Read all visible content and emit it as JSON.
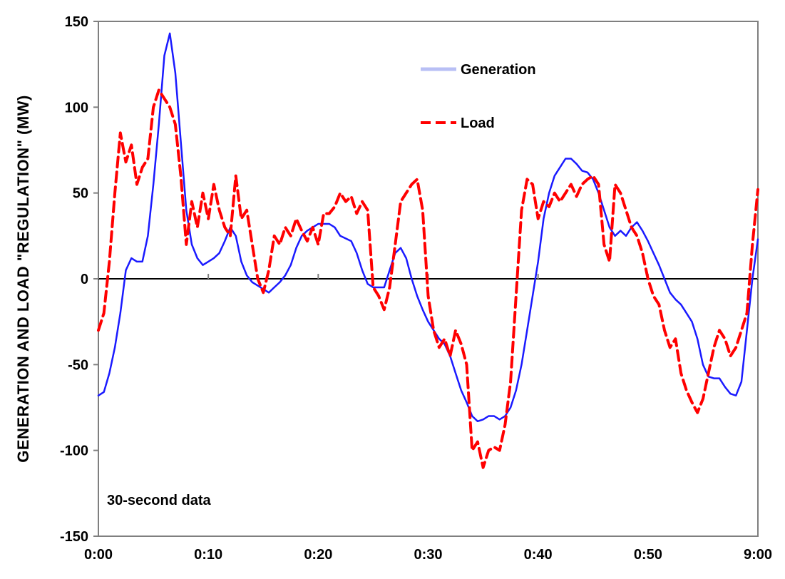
{
  "chart_data": {
    "type": "line",
    "title": "",
    "xlabel": "",
    "ylabel": "GENERATION AND LOAD \"REGULATION\" (MW)",
    "ylim": [
      -150,
      150
    ],
    "xlim": [
      0,
      60
    ],
    "x_ticks": [
      0,
      10,
      20,
      30,
      40,
      50,
      60
    ],
    "x_tick_labels": [
      "0:00",
      "0:10",
      "0:20",
      "0:30",
      "0:40",
      "0:50",
      "9:00"
    ],
    "y_ticks": [
      -150,
      -100,
      -50,
      0,
      50,
      100,
      150
    ],
    "y_tick_labels": [
      "-150",
      "-100",
      "-50",
      "0",
      "50",
      "100",
      "150"
    ],
    "grid": false,
    "zero_line": true,
    "legend_placement": "top-center",
    "annotation": "30-second data",
    "series": [
      {
        "name": "Generation",
        "color": "#1a1aff",
        "dash": "solid",
        "points": [
          [
            0,
            -68
          ],
          [
            0.5,
            -66
          ],
          [
            1,
            -55
          ],
          [
            1.5,
            -40
          ],
          [
            2,
            -20
          ],
          [
            2.5,
            5
          ],
          [
            3,
            12
          ],
          [
            3.5,
            10
          ],
          [
            4,
            10
          ],
          [
            4.5,
            25
          ],
          [
            5,
            55
          ],
          [
            5.5,
            90
          ],
          [
            6,
            130
          ],
          [
            6.5,
            143
          ],
          [
            7,
            120
          ],
          [
            7.5,
            80
          ],
          [
            8,
            40
          ],
          [
            8.5,
            20
          ],
          [
            9,
            12
          ],
          [
            9.5,
            8
          ],
          [
            10,
            10
          ],
          [
            10.5,
            12
          ],
          [
            11,
            15
          ],
          [
            11.5,
            22
          ],
          [
            12,
            30
          ],
          [
            12.5,
            25
          ],
          [
            13,
            10
          ],
          [
            13.5,
            2
          ],
          [
            14,
            -2
          ],
          [
            14.5,
            -4
          ],
          [
            15,
            -6
          ],
          [
            15.5,
            -8
          ],
          [
            16,
            -5
          ],
          [
            16.5,
            -2
          ],
          [
            17,
            2
          ],
          [
            17.5,
            8
          ],
          [
            18,
            18
          ],
          [
            18.5,
            25
          ],
          [
            19,
            28
          ],
          [
            19.5,
            30
          ],
          [
            20,
            32
          ],
          [
            21,
            32
          ],
          [
            21.5,
            30
          ],
          [
            22,
            25
          ],
          [
            23,
            22
          ],
          [
            23.5,
            15
          ],
          [
            24,
            5
          ],
          [
            24.5,
            -3
          ],
          [
            25,
            -5
          ],
          [
            26,
            -5
          ],
          [
            26.5,
            5
          ],
          [
            27,
            15
          ],
          [
            27.5,
            18
          ],
          [
            28,
            12
          ],
          [
            28.5,
            0
          ],
          [
            29,
            -10
          ],
          [
            29.5,
            -18
          ],
          [
            30,
            -25
          ],
          [
            30.5,
            -30
          ],
          [
            31,
            -35
          ],
          [
            31.5,
            -38
          ],
          [
            32,
            -45
          ],
          [
            32.5,
            -55
          ],
          [
            33,
            -65
          ],
          [
            33.5,
            -72
          ],
          [
            34,
            -80
          ],
          [
            34.5,
            -83
          ],
          [
            35,
            -82
          ],
          [
            35.5,
            -80
          ],
          [
            36,
            -80
          ],
          [
            36.5,
            -82
          ],
          [
            37,
            -80
          ],
          [
            37.5,
            -75
          ],
          [
            38,
            -65
          ],
          [
            38.5,
            -50
          ],
          [
            39,
            -30
          ],
          [
            39.5,
            -10
          ],
          [
            40,
            10
          ],
          [
            40.5,
            35
          ],
          [
            41,
            50
          ],
          [
            41.5,
            60
          ],
          [
            42,
            65
          ],
          [
            42.5,
            70
          ],
          [
            43,
            70
          ],
          [
            43.5,
            67
          ],
          [
            44,
            63
          ],
          [
            44.5,
            62
          ],
          [
            45,
            58
          ],
          [
            45.5,
            50
          ],
          [
            46,
            40
          ],
          [
            46.5,
            30
          ],
          [
            47,
            25
          ],
          [
            47.5,
            28
          ],
          [
            48,
            25
          ],
          [
            48.5,
            30
          ],
          [
            49,
            33
          ],
          [
            49.5,
            28
          ],
          [
            50,
            22
          ],
          [
            50.5,
            15
          ],
          [
            51,
            8
          ],
          [
            51.5,
            0
          ],
          [
            52,
            -8
          ],
          [
            52.5,
            -12
          ],
          [
            53,
            -15
          ],
          [
            53.5,
            -20
          ],
          [
            54,
            -25
          ],
          [
            54.5,
            -35
          ],
          [
            55,
            -50
          ],
          [
            55.5,
            -57
          ],
          [
            56,
            -58
          ],
          [
            56.5,
            -58
          ],
          [
            57,
            -63
          ],
          [
            57.5,
            -67
          ],
          [
            58,
            -68
          ],
          [
            58.5,
            -60
          ],
          [
            59,
            -30
          ],
          [
            59.5,
            0
          ],
          [
            60,
            23
          ]
        ]
      },
      {
        "name": "Load",
        "color": "#ff0000",
        "dash": "dashed",
        "points": [
          [
            0,
            -30
          ],
          [
            0.5,
            -20
          ],
          [
            1,
            10
          ],
          [
            1.5,
            50
          ],
          [
            2,
            85
          ],
          [
            2.5,
            68
          ],
          [
            3,
            78
          ],
          [
            3.5,
            55
          ],
          [
            4,
            65
          ],
          [
            4.5,
            70
          ],
          [
            5,
            100
          ],
          [
            5.5,
            110
          ],
          [
            6,
            105
          ],
          [
            6.5,
            100
          ],
          [
            7,
            90
          ],
          [
            7.5,
            60
          ],
          [
            8,
            20
          ],
          [
            8.5,
            45
          ],
          [
            9,
            30
          ],
          [
            9.5,
            50
          ],
          [
            10,
            35
          ],
          [
            10.5,
            55
          ],
          [
            11,
            40
          ],
          [
            11.5,
            30
          ],
          [
            12,
            25
          ],
          [
            12.5,
            60
          ],
          [
            13,
            35
          ],
          [
            13.5,
            40
          ],
          [
            14,
            20
          ],
          [
            14.5,
            0
          ],
          [
            15,
            -8
          ],
          [
            15.5,
            5
          ],
          [
            16,
            25
          ],
          [
            16.5,
            20
          ],
          [
            17,
            30
          ],
          [
            17.5,
            25
          ],
          [
            18,
            35
          ],
          [
            18.5,
            28
          ],
          [
            19,
            22
          ],
          [
            19.5,
            30
          ],
          [
            20,
            20
          ],
          [
            20.5,
            38
          ],
          [
            21,
            38
          ],
          [
            21.5,
            42
          ],
          [
            22,
            50
          ],
          [
            22.5,
            45
          ],
          [
            23,
            48
          ],
          [
            23.5,
            38
          ],
          [
            24,
            45
          ],
          [
            24.5,
            40
          ],
          [
            25,
            -5
          ],
          [
            25.5,
            -10
          ],
          [
            26,
            -18
          ],
          [
            26.5,
            -5
          ],
          [
            27,
            20
          ],
          [
            27.5,
            45
          ],
          [
            28,
            50
          ],
          [
            28.5,
            55
          ],
          [
            29,
            58
          ],
          [
            29.5,
            40
          ],
          [
            30,
            -10
          ],
          [
            30.5,
            -30
          ],
          [
            31,
            -40
          ],
          [
            31.5,
            -35
          ],
          [
            32,
            -45
          ],
          [
            32.5,
            -30
          ],
          [
            33,
            -38
          ],
          [
            33.5,
            -50
          ],
          [
            34,
            -100
          ],
          [
            34.5,
            -95
          ],
          [
            35,
            -110
          ],
          [
            35.5,
            -100
          ],
          [
            36,
            -98
          ],
          [
            36.5,
            -100
          ],
          [
            37,
            -85
          ],
          [
            37.5,
            -60
          ],
          [
            38,
            -10
          ],
          [
            38.5,
            40
          ],
          [
            39,
            58
          ],
          [
            39.5,
            55
          ],
          [
            40,
            35
          ],
          [
            40.5,
            45
          ],
          [
            41,
            42
          ],
          [
            41.5,
            50
          ],
          [
            42,
            45
          ],
          [
            42.5,
            50
          ],
          [
            43,
            55
          ],
          [
            43.5,
            48
          ],
          [
            44,
            55
          ],
          [
            44.5,
            58
          ],
          [
            45,
            60
          ],
          [
            45.5,
            55
          ],
          [
            46,
            20
          ],
          [
            46.5,
            10
          ],
          [
            47,
            55
          ],
          [
            47.5,
            50
          ],
          [
            48,
            40
          ],
          [
            48.5,
            30
          ],
          [
            49,
            25
          ],
          [
            49.5,
            15
          ],
          [
            50,
            0
          ],
          [
            50.5,
            -10
          ],
          [
            51,
            -15
          ],
          [
            51.5,
            -30
          ],
          [
            52,
            -40
          ],
          [
            52.5,
            -35
          ],
          [
            53,
            -55
          ],
          [
            53.5,
            -65
          ],
          [
            54,
            -72
          ],
          [
            54.5,
            -78
          ],
          [
            55,
            -70
          ],
          [
            55.5,
            -55
          ],
          [
            56,
            -40
          ],
          [
            56.5,
            -30
          ],
          [
            57,
            -35
          ],
          [
            57.5,
            -45
          ],
          [
            58,
            -40
          ],
          [
            58.5,
            -30
          ],
          [
            59,
            -20
          ],
          [
            59.5,
            20
          ],
          [
            60,
            52
          ]
        ]
      }
    ]
  }
}
